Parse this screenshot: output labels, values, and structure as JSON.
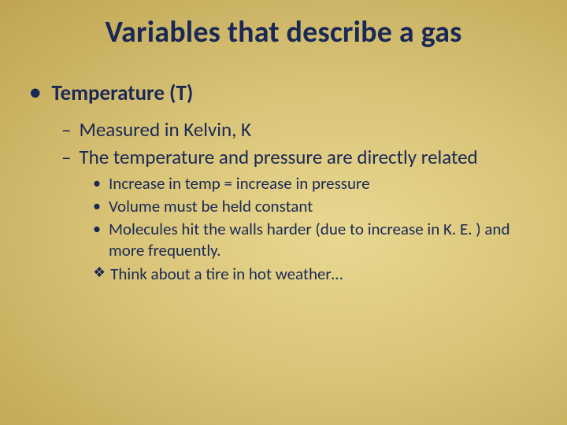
{
  "colors": {
    "text": "#1a2856",
    "bg_inner": "#e8d890",
    "bg_mid1": "#d9c478",
    "bg_mid2": "#c8b060",
    "bg_outer1": "#b89a48",
    "bg_outer2": "#a88838"
  },
  "typography": {
    "title_fontsize": 38,
    "l1_fontsize": 27,
    "l2_fontsize": 25,
    "l3_fontsize": 21,
    "title_weight": 700,
    "l1_weight": 700,
    "l2_weight": 400,
    "l3_weight": 400,
    "font_family": "Calibri"
  },
  "title": "Variables that describe a gas",
  "bullets": {
    "l1": {
      "mark": "•",
      "text": "Temperature (T)"
    },
    "l2a": {
      "mark": "–",
      "text": "Measured in Kelvin, K"
    },
    "l2b": {
      "mark": "–",
      "text": "The temperature and pressure are directly related"
    },
    "l3a": {
      "mark": "•",
      "text": "Increase in temp = increase in pressure"
    },
    "l3b": {
      "mark": "•",
      "text": "Volume must be held constant"
    },
    "l3c": {
      "mark": "•",
      "text": "Molecules hit the walls harder (due to increase in K. E. ) and more frequently."
    },
    "l4a": {
      "mark": "❖",
      "text": "Think about a tire in hot weather…"
    }
  }
}
